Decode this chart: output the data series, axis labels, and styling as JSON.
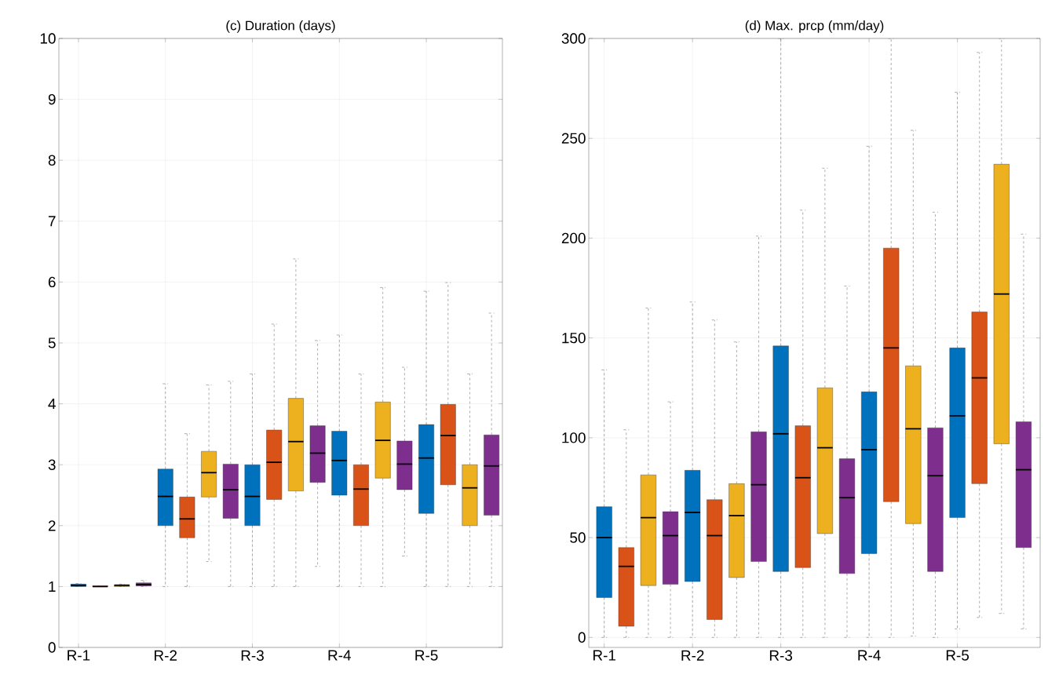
{
  "chart_data": [
    {
      "type": "box",
      "title": "(c) Duration (days)",
      "categories": [
        "R-1",
        null,
        null,
        null,
        "R-2",
        null,
        null,
        null,
        "R-3",
        null,
        null,
        null,
        "R-4",
        null,
        null,
        null,
        "R-5",
        null,
        null,
        null
      ],
      "colors": [
        "#0072bd",
        "#d95319",
        "#edb120",
        "#7e2f8e",
        "#0072bd",
        "#d95319",
        "#edb120",
        "#7e2f8e",
        "#0072bd",
        "#d95319",
        "#edb120",
        "#7e2f8e",
        "#0072bd",
        "#d95319",
        "#edb120",
        "#7e2f8e",
        "#0072bd",
        "#d95319",
        "#edb120",
        "#7e2f8e"
      ],
      "boxes": [
        {
          "low": 1,
          "q1": 1.0,
          "median": 1.02,
          "q3": 1.04,
          "high": 1.05
        },
        {
          "low": 1,
          "q1": 1.0,
          "median": 1.0,
          "q3": 1.01,
          "high": 1.01
        },
        {
          "low": 1,
          "q1": 1.0,
          "median": 1.02,
          "q3": 1.03,
          "high": 1.04
        },
        {
          "low": 1,
          "q1": 1.01,
          "median": 1.03,
          "q3": 1.06,
          "high": 1.1
        },
        {
          "low": 1,
          "q1": 2.0,
          "median": 2.48,
          "q3": 2.93,
          "high": 4.33
        },
        {
          "low": 1,
          "q1": 1.8,
          "median": 2.11,
          "q3": 2.47,
          "high": 3.51
        },
        {
          "low": 1.41,
          "q1": 2.47,
          "median": 2.87,
          "q3": 3.22,
          "high": 4.31
        },
        {
          "low": 1,
          "q1": 2.12,
          "median": 2.59,
          "q3": 3.01,
          "high": 4.37
        },
        {
          "low": 1,
          "q1": 2.0,
          "median": 2.48,
          "q3": 3.0,
          "high": 4.49
        },
        {
          "low": 1,
          "q1": 2.43,
          "median": 3.04,
          "q3": 3.57,
          "high": 5.31
        },
        {
          "low": 1,
          "q1": 2.57,
          "median": 3.38,
          "q3": 4.09,
          "high": 6.38
        },
        {
          "low": 1.33,
          "q1": 2.71,
          "median": 3.19,
          "q3": 3.64,
          "high": 5.04
        },
        {
          "low": 1,
          "q1": 2.5,
          "median": 3.07,
          "q3": 3.55,
          "high": 5.13
        },
        {
          "low": 1,
          "q1": 2.0,
          "median": 2.6,
          "q3": 3.0,
          "high": 4.49
        },
        {
          "low": 1,
          "q1": 2.78,
          "median": 3.4,
          "q3": 4.03,
          "high": 5.91
        },
        {
          "low": 1.5,
          "q1": 2.59,
          "median": 3.01,
          "q3": 3.39,
          "high": 4.6
        },
        {
          "low": 1,
          "q1": 2.2,
          "median": 3.11,
          "q3": 3.66,
          "high": 5.85
        },
        {
          "low": 1,
          "q1": 2.67,
          "median": 3.48,
          "q3": 3.99,
          "high": 5.99
        },
        {
          "low": 1,
          "q1": 2.0,
          "median": 2.62,
          "q3": 3.0,
          "high": 4.49
        },
        {
          "low": 1,
          "q1": 2.17,
          "median": 2.98,
          "q3": 3.49,
          "high": 5.49
        }
      ],
      "ylim": [
        0,
        10
      ],
      "yticks": [
        0,
        1,
        2,
        3,
        4,
        5,
        6,
        7,
        8,
        9,
        10
      ],
      "grid": true
    },
    {
      "type": "box",
      "title": "(d) Max. prcp (mm/day)",
      "categories": [
        "R-1",
        null,
        null,
        null,
        "R-2",
        null,
        null,
        null,
        "R-3",
        null,
        null,
        null,
        "R-4",
        null,
        null,
        null,
        "R-5",
        null,
        null,
        null
      ],
      "colors": [
        "#0072bd",
        "#d95319",
        "#edb120",
        "#7e2f8e",
        "#0072bd",
        "#d95319",
        "#edb120",
        "#7e2f8e",
        "#0072bd",
        "#d95319",
        "#edb120",
        "#7e2f8e",
        "#0072bd",
        "#d95319",
        "#edb120",
        "#7e2f8e",
        "#0072bd",
        "#d95319",
        "#edb120",
        "#7e2f8e"
      ],
      "boxes": [
        {
          "low": 0,
          "q1": 20,
          "median": 50,
          "q3": 65.5,
          "high": 134
        },
        {
          "low": 0,
          "q1": 5.6,
          "median": 35.6,
          "q3": 45,
          "high": 104
        },
        {
          "low": 0,
          "q1": 26,
          "median": 60,
          "q3": 81.4,
          "high": 165
        },
        {
          "low": 0,
          "q1": 26.6,
          "median": 51,
          "q3": 63,
          "high": 118
        },
        {
          "low": 0,
          "q1": 28,
          "median": 62.6,
          "q3": 83.7,
          "high": 168
        },
        {
          "low": 0,
          "q1": 9,
          "median": 51,
          "q3": 69,
          "high": 159
        },
        {
          "low": 0,
          "q1": 30,
          "median": 61,
          "q3": 77,
          "high": 148
        },
        {
          "low": 0,
          "q1": 38,
          "median": 76.5,
          "q3": 103,
          "high": 201
        },
        {
          "low": 0,
          "q1": 33,
          "median": 102,
          "q3": 146,
          "high": 300
        },
        {
          "low": 0,
          "q1": 35,
          "median": 80,
          "q3": 106,
          "high": 214
        },
        {
          "low": 0,
          "q1": 52,
          "median": 95,
          "q3": 125,
          "high": 235
        },
        {
          "low": 0,
          "q1": 32,
          "median": 70,
          "q3": 89.5,
          "high": 176
        },
        {
          "low": 0,
          "q1": 42,
          "median": 94,
          "q3": 123,
          "high": 246
        },
        {
          "low": 0,
          "q1": 68,
          "median": 145,
          "q3": 195,
          "high": 300
        },
        {
          "low": 0.7,
          "q1": 57,
          "median": 104.5,
          "q3": 136,
          "high": 254
        },
        {
          "low": 0,
          "q1": 33,
          "median": 81,
          "q3": 105,
          "high": 213
        },
        {
          "low": 4.3,
          "q1": 60,
          "median": 111,
          "q3": 145,
          "high": 273
        },
        {
          "low": 10,
          "q1": 77,
          "median": 130,
          "q3": 163,
          "high": 293
        },
        {
          "low": 12,
          "q1": 97,
          "median": 172,
          "q3": 237,
          "high": 300
        },
        {
          "low": 4.3,
          "q1": 45,
          "median": 84,
          "q3": 108,
          "high": 202
        }
      ],
      "ylim": [
        -5,
        300
      ],
      "yticks": [
        0,
        50,
        100,
        150,
        200,
        250,
        300
      ],
      "grid": true
    }
  ]
}
